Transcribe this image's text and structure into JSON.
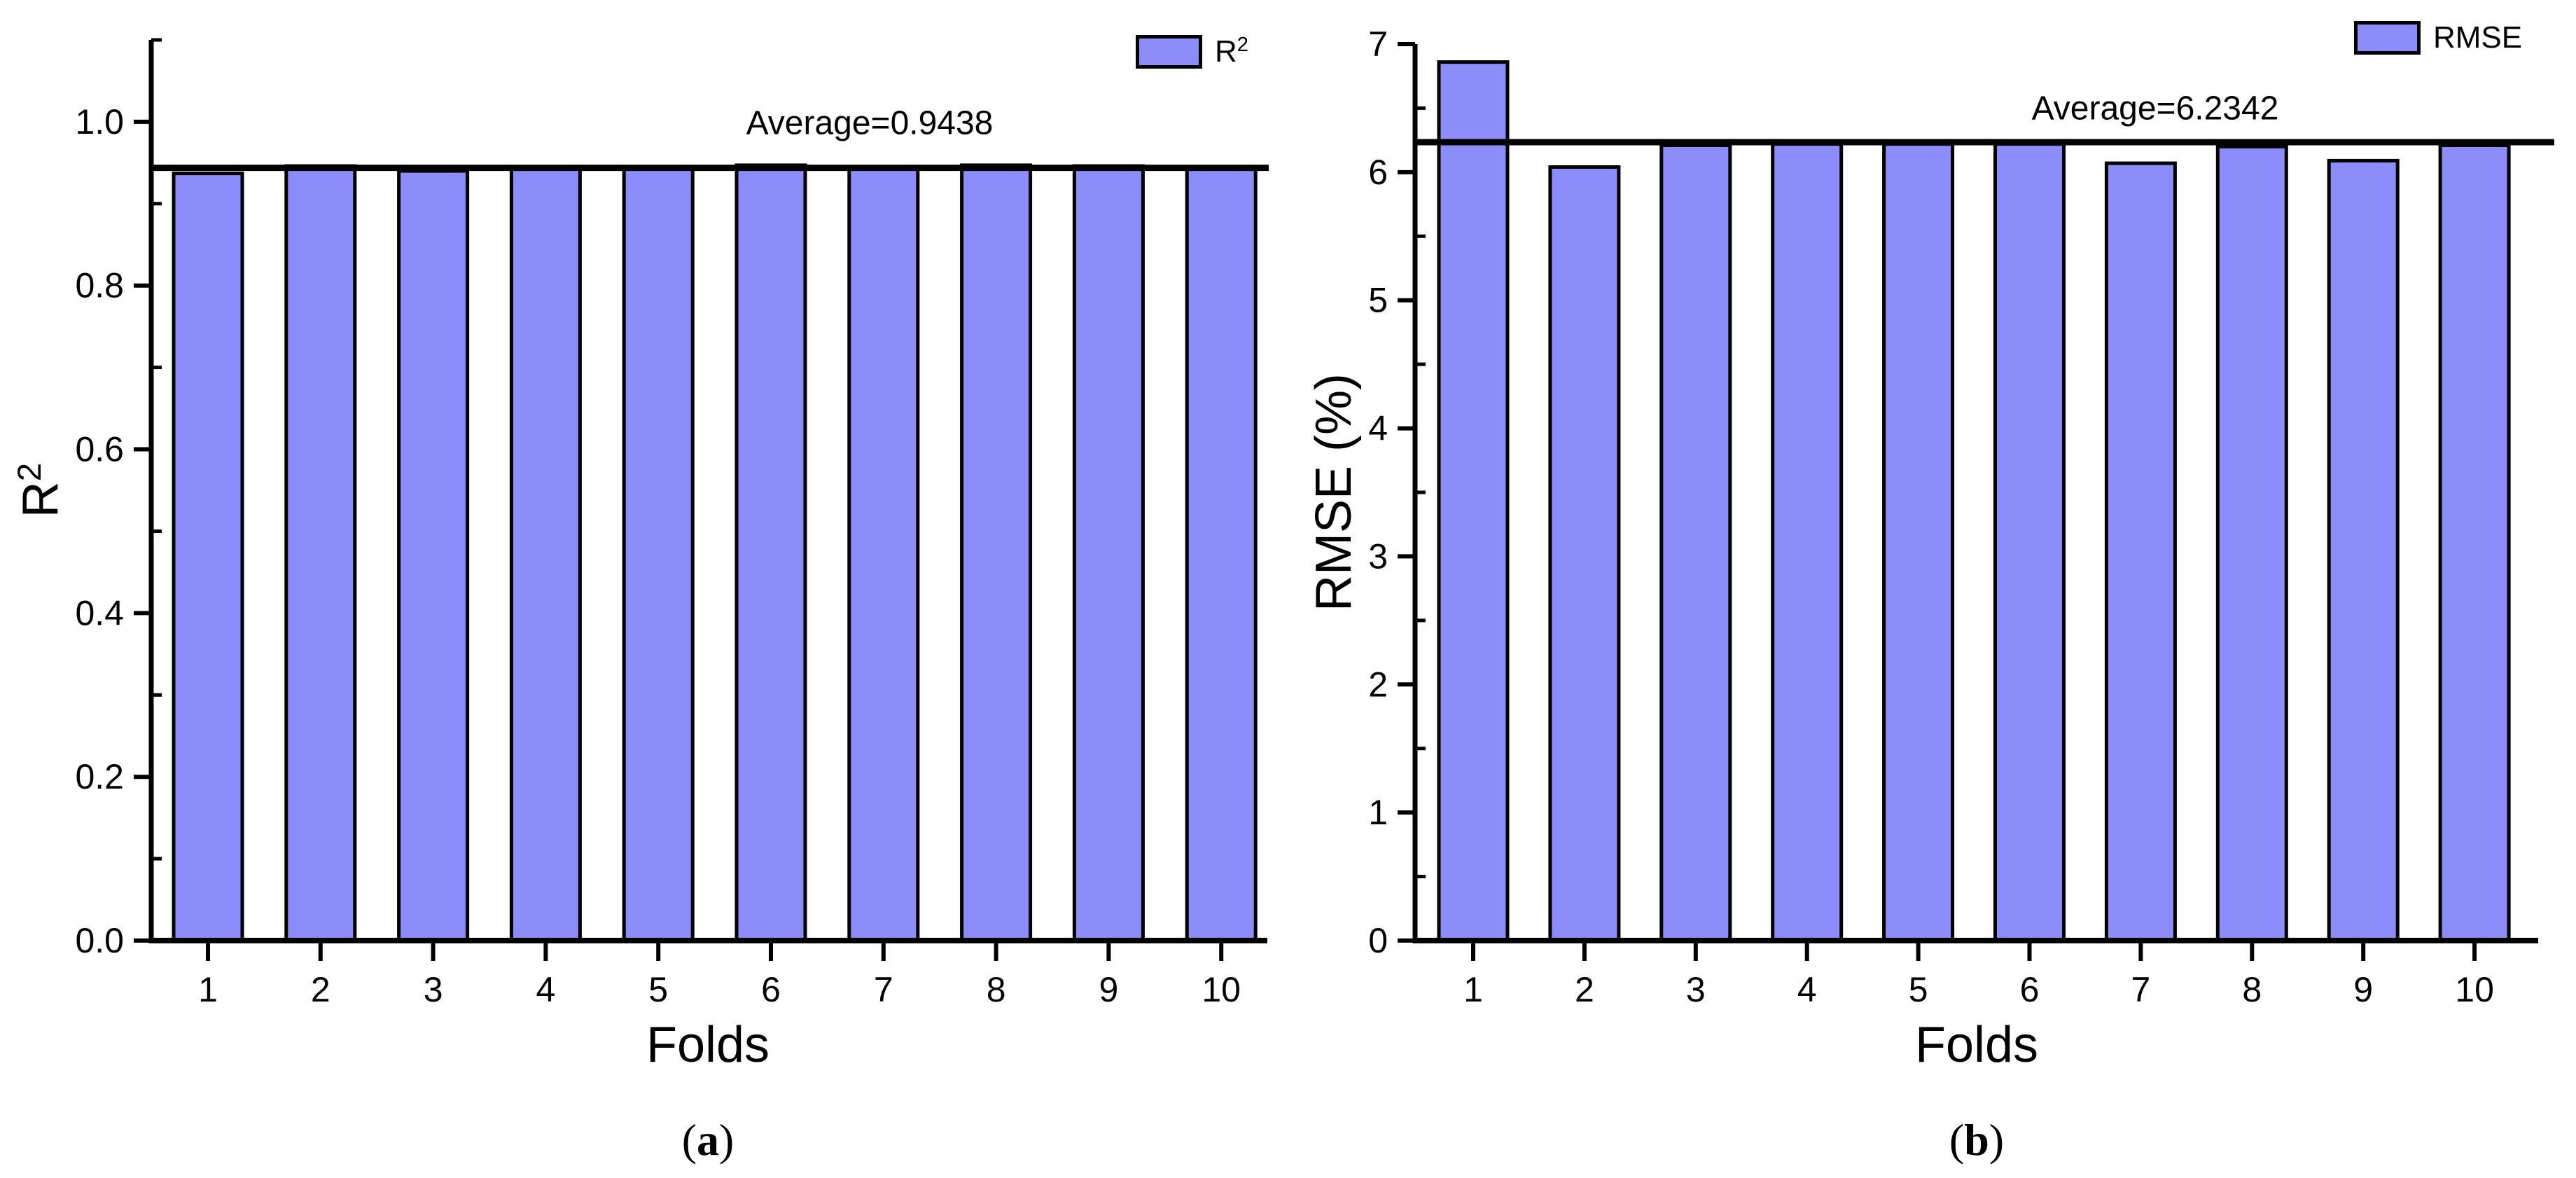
{
  "colors": {
    "background": "#ffffff",
    "bar_fill": "#8c8cfa",
    "bar_stroke": "#000000",
    "axis": "#000000",
    "average_line": "#000000",
    "text": "#000000"
  },
  "chart_data": [
    {
      "type": "bar",
      "panel": "a",
      "caption_open": "(",
      "caption_letter": "a",
      "caption_close": ")",
      "xlabel": "Folds",
      "ylabel_text": "R",
      "ylabel_sup": "2",
      "legend_label": "R",
      "legend_sup": "2",
      "legend_position": "top-right",
      "grid": false,
      "categories": [
        "1",
        "2",
        "3",
        "4",
        "5",
        "6",
        "7",
        "8",
        "9",
        "10"
      ],
      "values": [
        0.937,
        0.946,
        0.94,
        0.945,
        0.945,
        0.947,
        0.943,
        0.947,
        0.946,
        0.944
      ],
      "average_value": 0.9438,
      "average_label": "Average=0.9438",
      "ylim": [
        0,
        1.1
      ],
      "yticks": [
        {
          "v": 0.0,
          "label": "0.0"
        },
        {
          "v": 0.2,
          "label": "0.2"
        },
        {
          "v": 0.4,
          "label": "0.4"
        },
        {
          "v": 0.6,
          "label": "0.6"
        },
        {
          "v": 0.8,
          "label": "0.8"
        },
        {
          "v": 1.0,
          "label": "1.0"
        }
      ],
      "yminors": [
        0.1,
        0.3,
        0.5,
        0.7,
        0.9,
        1.1
      ]
    },
    {
      "type": "bar",
      "panel": "b",
      "caption_open": "(",
      "caption_letter": "b",
      "caption_close": ")",
      "xlabel": "Folds",
      "ylabel_text": "RMSE (%)",
      "ylabel_sup": "",
      "legend_label": "RMSE",
      "legend_sup": "",
      "legend_position": "top-right",
      "grid": false,
      "categories": [
        "1",
        "2",
        "3",
        "4",
        "5",
        "6",
        "7",
        "8",
        "9",
        "10"
      ],
      "values": [
        6.86,
        6.04,
        6.21,
        6.22,
        6.22,
        6.22,
        6.07,
        6.2,
        6.09,
        6.21
      ],
      "average_value": 6.2342,
      "average_label": "Average=6.2342",
      "ylim": [
        0,
        7
      ],
      "yticks": [
        {
          "v": 0,
          "label": "0"
        },
        {
          "v": 1,
          "label": "1"
        },
        {
          "v": 2,
          "label": "2"
        },
        {
          "v": 3,
          "label": "3"
        },
        {
          "v": 4,
          "label": "4"
        },
        {
          "v": 5,
          "label": "5"
        },
        {
          "v": 6,
          "label": "6"
        },
        {
          "v": 7,
          "label": "7"
        }
      ],
      "yminors": [
        0.5,
        1.5,
        2.5,
        3.5,
        4.5,
        5.5,
        6.5
      ]
    }
  ]
}
